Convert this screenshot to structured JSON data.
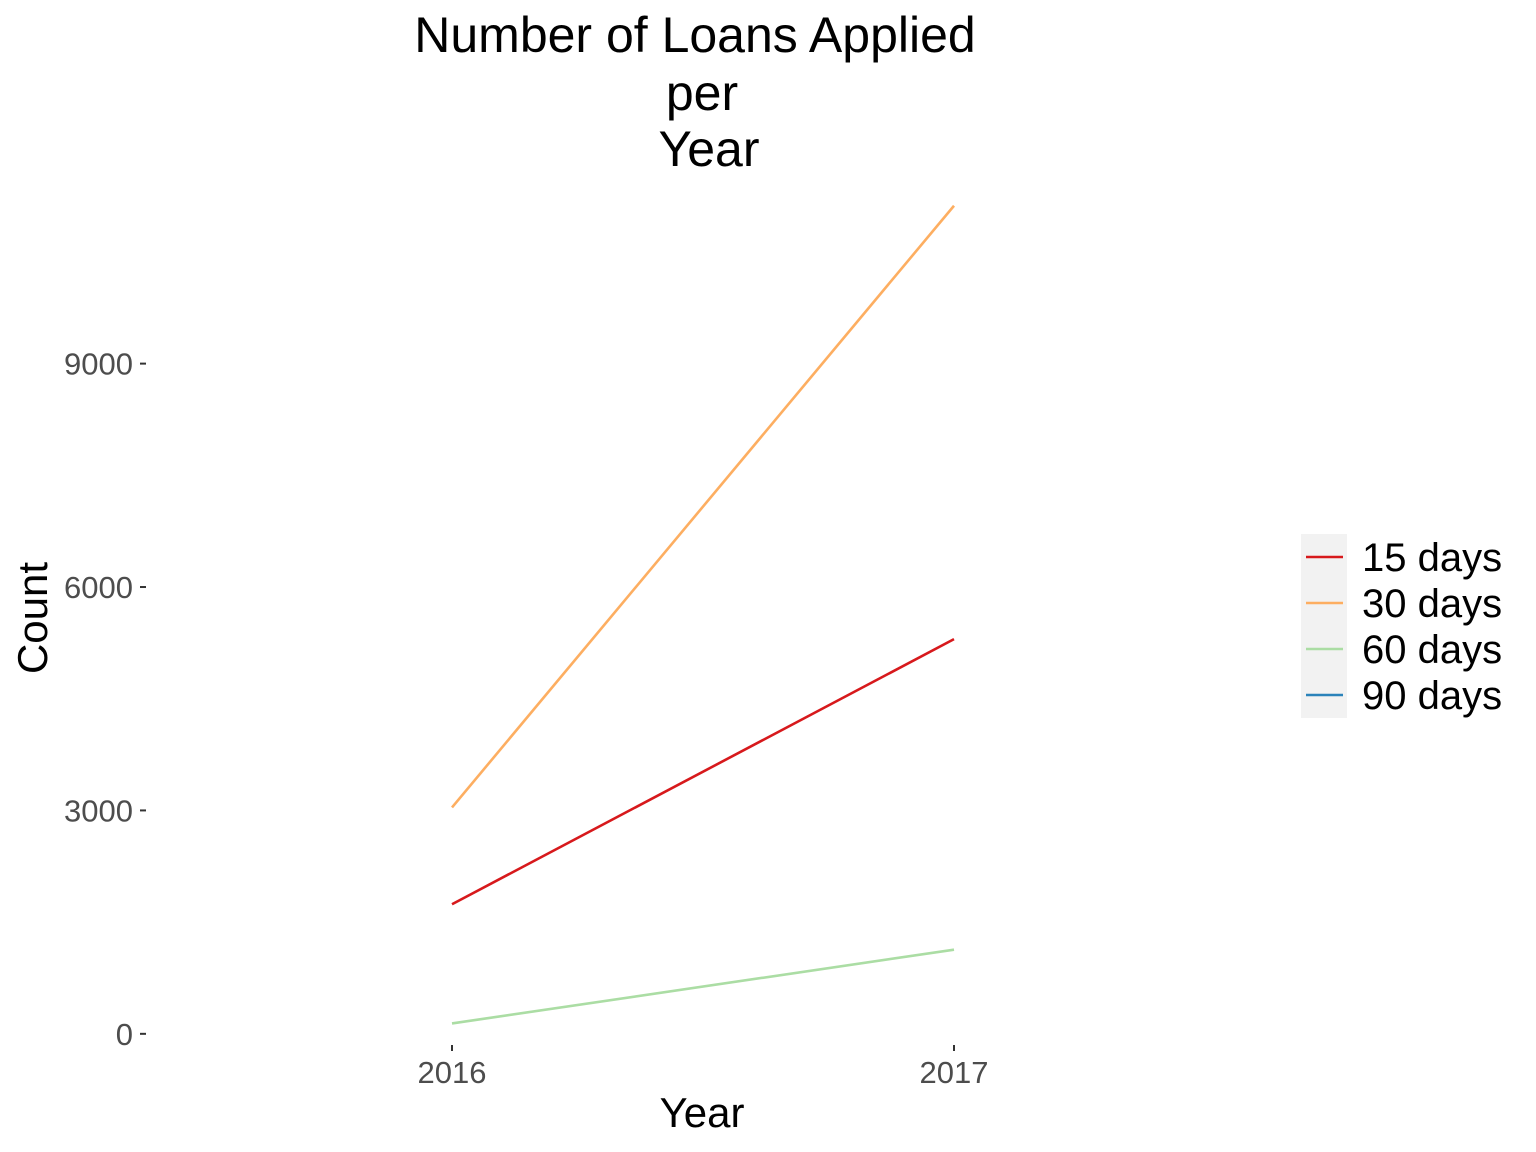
{
  "chart_data": {
    "type": "line",
    "title": "Number of Loans Applied per Year",
    "title_lines": [
      "Number of Loans Applied",
      "per",
      "Year"
    ],
    "xlabel": "Year",
    "ylabel": "Count",
    "categories": [
      "2016",
      "2017"
    ],
    "yticks": [
      0,
      3000,
      6000,
      9000
    ],
    "ylim": [
      -150,
      11600
    ],
    "grid": false,
    "legend_position": "right",
    "series": [
      {
        "name": "15 days",
        "color": "#d7191c",
        "values": [
          1740,
          5300
        ]
      },
      {
        "name": "30 days",
        "color": "#fdae61",
        "values": [
          3040,
          11120
        ]
      },
      {
        "name": "60 days",
        "color": "#abdda4",
        "values": [
          140,
          1130
        ]
      },
      {
        "name": "90 days",
        "color": "#2b83ba",
        "values": [
          null,
          null
        ]
      }
    ]
  }
}
